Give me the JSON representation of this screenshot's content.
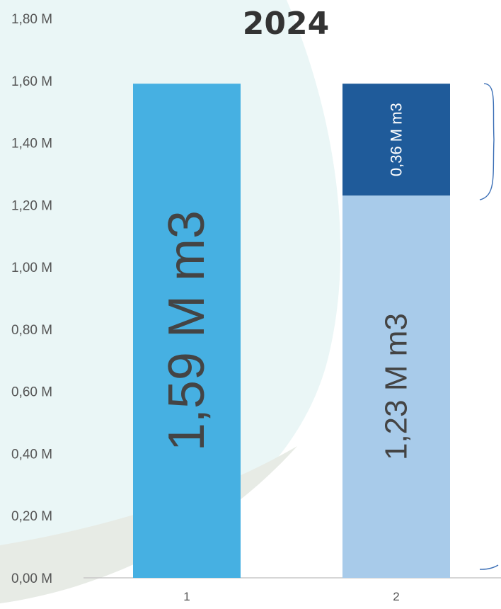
{
  "colors": {
    "bar_total": "#46b0e2",
    "segment_top": "#1f5b9a",
    "segment_bottom": "#a8cbea",
    "background_shape": "#eaf6f6",
    "background_shape_lower": "#e7ebe5",
    "axis": "#c8c8c8",
    "tick_text": "#555555",
    "label_text": "#444444",
    "brace": "#3b6fb6"
  },
  "chart_data": {
    "type": "bar",
    "title": "2024",
    "categories": [
      "1",
      "2"
    ],
    "ylim": [
      0,
      1.8
    ],
    "y_ticks": [
      "0,00 M",
      "0,20 M",
      "0,40 M",
      "0,60 M",
      "0,80 M",
      "1,00 M",
      "1,20 M",
      "1,40 M",
      "1,60 M",
      "1,80 M"
    ],
    "stacked": true,
    "series": [
      {
        "values": [
          1.59,
          1.23
        ],
        "colors": [
          "bar_total",
          "segment_bottom"
        ],
        "labels": [
          "1,59 M m3",
          "1,23 M m3"
        ]
      },
      {
        "values": [
          0,
          0.36
        ],
        "colors": [
          "segment_top",
          "segment_top"
        ],
        "labels": [
          "",
          "0,36 M m3"
        ]
      }
    ],
    "grid": false,
    "legend": "none"
  }
}
